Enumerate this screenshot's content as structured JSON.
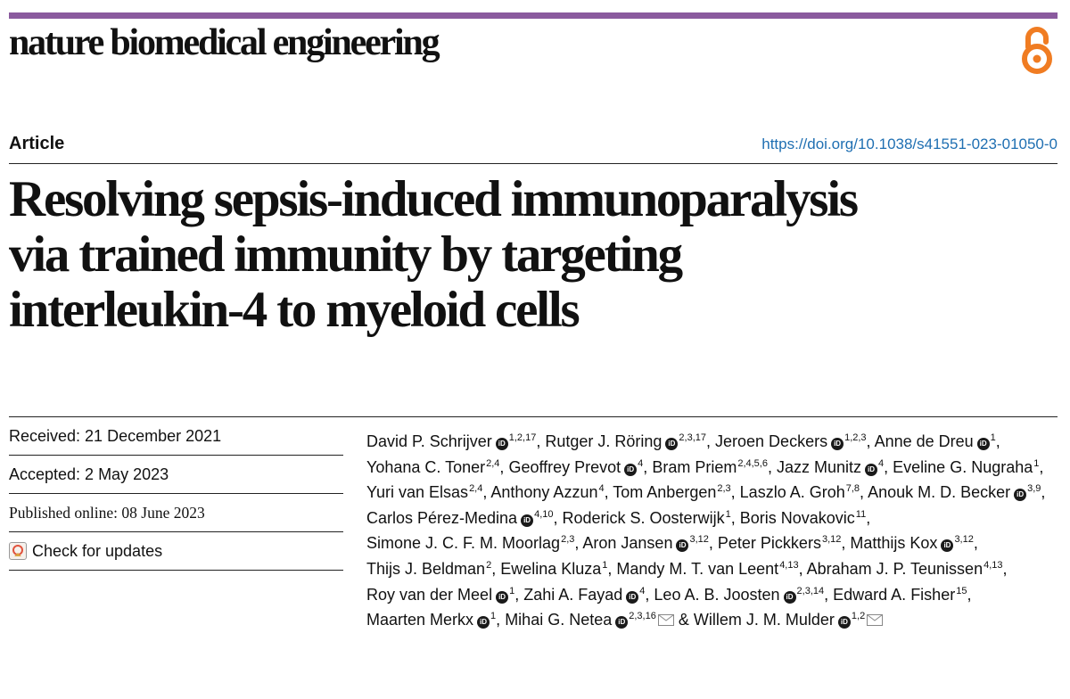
{
  "journal": {
    "name": "nature biomedical engineering",
    "open_access_icon": "open-access-lock-icon"
  },
  "colors": {
    "top_bar": "#8a5a9e",
    "doi_link": "#1f6fb2",
    "open_access": "#f07c22"
  },
  "article": {
    "type": "Article",
    "doi": "https://doi.org/10.1038/s41551-023-01050-0",
    "title_lines": [
      "Resolving sepsis-induced immunoparalysis",
      "via trained immunity by targeting",
      "interleukin-4 to myeloid cells"
    ],
    "received": "Received: 21 December 2021",
    "accepted": "Accepted: 2 May 2023",
    "published": "Published online: 08 June 2023",
    "check_updates": "Check for updates"
  },
  "authors": [
    {
      "name": "David P. Schrijver",
      "orcid": true,
      "aff": "1,2,17"
    },
    {
      "name": "Rutger J. Röring",
      "orcid": true,
      "aff": "2,3,17"
    },
    {
      "name": "Jeroen Deckers",
      "orcid": true,
      "aff": "1,2,3"
    },
    {
      "name": "Anne de Dreu",
      "orcid": true,
      "aff": "1"
    },
    {
      "name": "Yohana C. Toner",
      "orcid": false,
      "aff": "2,4"
    },
    {
      "name": "Geoffrey Prevot",
      "orcid": true,
      "aff": "4"
    },
    {
      "name": "Bram Priem",
      "orcid": false,
      "aff": "2,4,5,6"
    },
    {
      "name": "Jazz Munitz",
      "orcid": true,
      "aff": "4"
    },
    {
      "name": "Eveline G. Nugraha",
      "orcid": false,
      "aff": "1"
    },
    {
      "name": "Yuri van Elsas",
      "orcid": false,
      "aff": "2,4"
    },
    {
      "name": "Anthony Azzun",
      "orcid": false,
      "aff": "4"
    },
    {
      "name": "Tom Anbergen",
      "orcid": false,
      "aff": "2,3"
    },
    {
      "name": "Laszlo A. Groh",
      "orcid": false,
      "aff": "7,8"
    },
    {
      "name": "Anouk M. D. Becker",
      "orcid": true,
      "aff": "3,9"
    },
    {
      "name": "Carlos Pérez-Medina",
      "orcid": true,
      "aff": "4,10"
    },
    {
      "name": "Roderick S. Oosterwijk",
      "orcid": false,
      "aff": "1"
    },
    {
      "name": "Boris Novakovic",
      "orcid": false,
      "aff": "11"
    },
    {
      "name": "Simone J. C. F. M. Moorlag",
      "orcid": false,
      "aff": "2,3"
    },
    {
      "name": "Aron Jansen",
      "orcid": true,
      "aff": "3,12"
    },
    {
      "name": "Peter Pickkers",
      "orcid": false,
      "aff": "3,12"
    },
    {
      "name": "Matthijs Kox",
      "orcid": true,
      "aff": "3,12"
    },
    {
      "name": "Thijs J. Beldman",
      "orcid": false,
      "aff": "2"
    },
    {
      "name": "Ewelina Kluza",
      "orcid": false,
      "aff": "1"
    },
    {
      "name": "Mandy M. T. van Leent",
      "orcid": false,
      "aff": "4,13"
    },
    {
      "name": "Abraham J. P. Teunissen",
      "orcid": false,
      "aff": "4,13"
    },
    {
      "name": "Roy van der Meel",
      "orcid": true,
      "aff": "1"
    },
    {
      "name": "Zahi A. Fayad",
      "orcid": true,
      "aff": "4"
    },
    {
      "name": "Leo A. B. Joosten",
      "orcid": true,
      "aff": "2,3,14"
    },
    {
      "name": "Edward A. Fisher",
      "orcid": false,
      "aff": "15"
    },
    {
      "name": "Maarten Merkx",
      "orcid": true,
      "aff": "1"
    },
    {
      "name": "Mihai G. Netea",
      "orcid": true,
      "aff": "2,3,16",
      "email": true
    },
    {
      "name": "Willem J. M. Mulder",
      "orcid": true,
      "aff": "1,2",
      "email": true,
      "prefix": "& "
    }
  ],
  "orcid_label": "iD"
}
